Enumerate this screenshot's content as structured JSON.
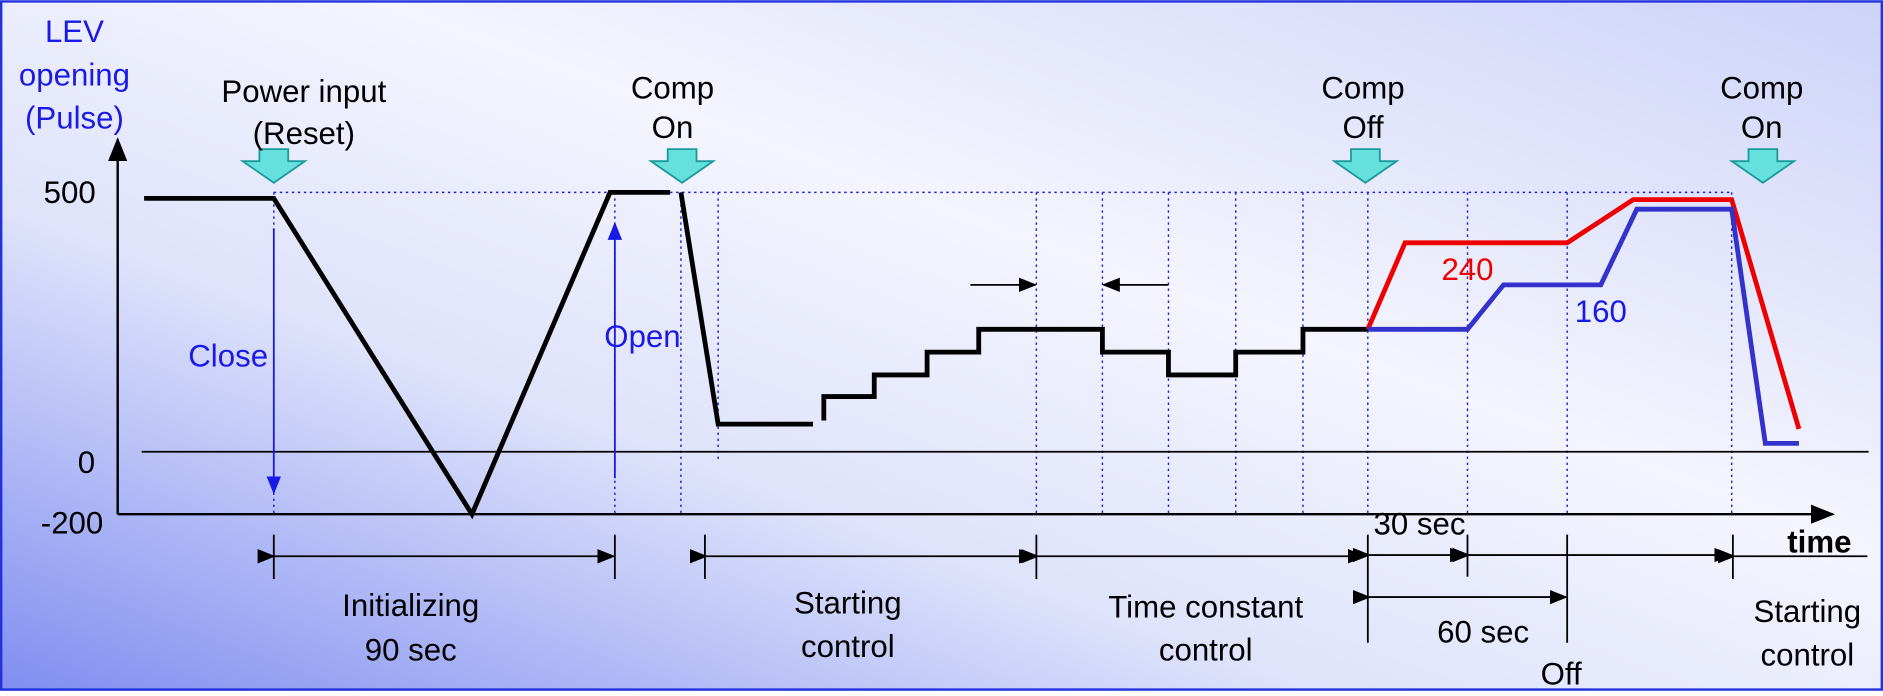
{
  "y_axis": {
    "label": [
      "LEV",
      "opening",
      "(Pulse)"
    ],
    "ticks": [
      "500",
      "0",
      "-200"
    ]
  },
  "events": [
    {
      "label": [
        "Power input",
        "(Reset)"
      ]
    },
    {
      "label": [
        "Comp",
        "On"
      ]
    },
    {
      "label": [
        "Comp",
        "Off"
      ]
    },
    {
      "label": [
        "Comp",
        "On"
      ]
    }
  ],
  "annotations": {
    "close": "Close",
    "open": "Open",
    "red_level": "240",
    "blue_level": "160",
    "x_axis": "time"
  },
  "phases": [
    {
      "label": [
        "Initializing",
        "90 sec"
      ]
    },
    {
      "label": [
        "Starting",
        "control"
      ]
    },
    {
      "label": [
        "Time constant",
        "control"
      ]
    },
    {
      "label": [
        "30 sec"
      ]
    },
    {
      "label": [
        "60 sec"
      ]
    },
    {
      "label": [
        "Off"
      ]
    },
    {
      "label": [
        "Starting",
        "control"
      ]
    }
  ]
}
